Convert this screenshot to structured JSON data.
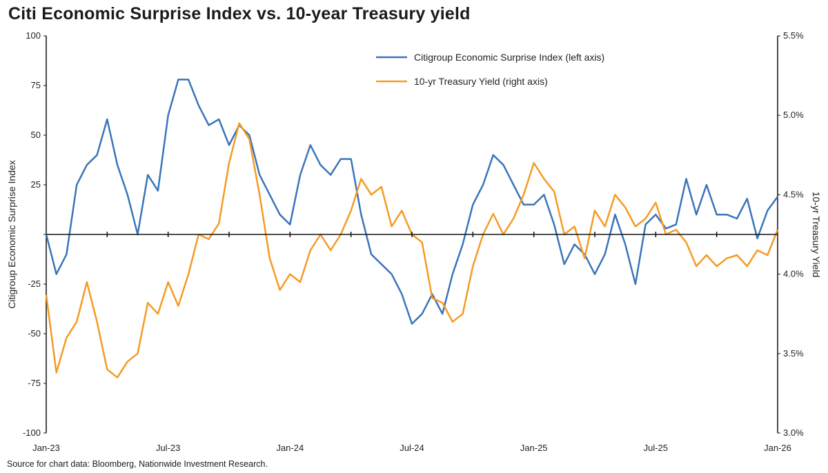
{
  "title": "Citi Economic Surprise Index vs. 10-year Treasury yield",
  "source": "Source for chart data: Bloomberg, Nationwide Investment Research.",
  "chart_data": {
    "type": "line",
    "title": "Citi Economic Surprise Index vs. 10-year Treasury yield",
    "x_start": "2023-01-01",
    "x_end": "2026-01-01",
    "x_step": "semi-monthly",
    "xticks": [
      "Jan-23",
      "Jul-23",
      "Jan-24",
      "Jul-24",
      "Jan-25",
      "Jul-25",
      "Jan-26"
    ],
    "ylabel_left": "Citigroup Economic Surprise Index",
    "ylabel_right": "10-yr Treasury Yield",
    "ylim_left": [
      -100,
      100
    ],
    "yticks_left": [
      "100",
      "75",
      "50",
      "25",
      "",
      "-25",
      "-50",
      "-75",
      "-100"
    ],
    "ylim_right": [
      3.0,
      5.5
    ],
    "yticks_right": [
      "5.5%",
      "5.0%",
      "4.5%",
      "4.0%",
      "3.5%",
      "3.0%"
    ],
    "zero_line": true,
    "legend_position": "top-center",
    "series": [
      {
        "name": "Citigroup Economic Surprise Index (left axis)",
        "axis": "left",
        "color": "#3a74b9",
        "values": [
          0,
          -20,
          -10,
          25,
          35,
          40,
          58,
          35,
          20,
          0,
          30,
          22,
          60,
          78,
          78,
          65,
          55,
          58,
          45,
          55,
          50,
          30,
          20,
          10,
          5,
          30,
          45,
          35,
          30,
          38,
          38,
          10,
          -10,
          -15,
          -20,
          -30,
          -45,
          -40,
          -30,
          -40,
          -20,
          -5,
          15,
          25,
          40,
          35,
          25,
          15,
          15,
          20,
          5,
          -15,
          -5,
          -10,
          -20,
          -10,
          10,
          -5,
          -25,
          5,
          10,
          3,
          5,
          28,
          10,
          25,
          10,
          10,
          8,
          18,
          -2,
          12,
          19
        ]
      },
      {
        "name": "10-yr Treasury Yield (right axis)",
        "axis": "right",
        "color": "#f59a23",
        "values": [
          3.87,
          3.38,
          3.6,
          3.7,
          3.95,
          3.7,
          3.4,
          3.35,
          3.45,
          3.5,
          3.82,
          3.75,
          3.95,
          3.8,
          4.0,
          4.25,
          4.22,
          4.32,
          4.7,
          4.95,
          4.85,
          4.5,
          4.1,
          3.9,
          4.0,
          3.95,
          4.15,
          4.25,
          4.15,
          4.25,
          4.4,
          4.6,
          4.5,
          4.55,
          4.3,
          4.4,
          4.25,
          4.2,
          3.85,
          3.82,
          3.7,
          3.75,
          4.05,
          4.25,
          4.38,
          4.25,
          4.35,
          4.5,
          4.7,
          4.6,
          4.52,
          4.25,
          4.3,
          4.1,
          4.4,
          4.3,
          4.5,
          4.42,
          4.3,
          4.35,
          4.45,
          4.25,
          4.28,
          4.2,
          4.05,
          4.12,
          4.05,
          4.1,
          4.12,
          4.05,
          4.15,
          4.12,
          4.28
        ]
      }
    ]
  }
}
